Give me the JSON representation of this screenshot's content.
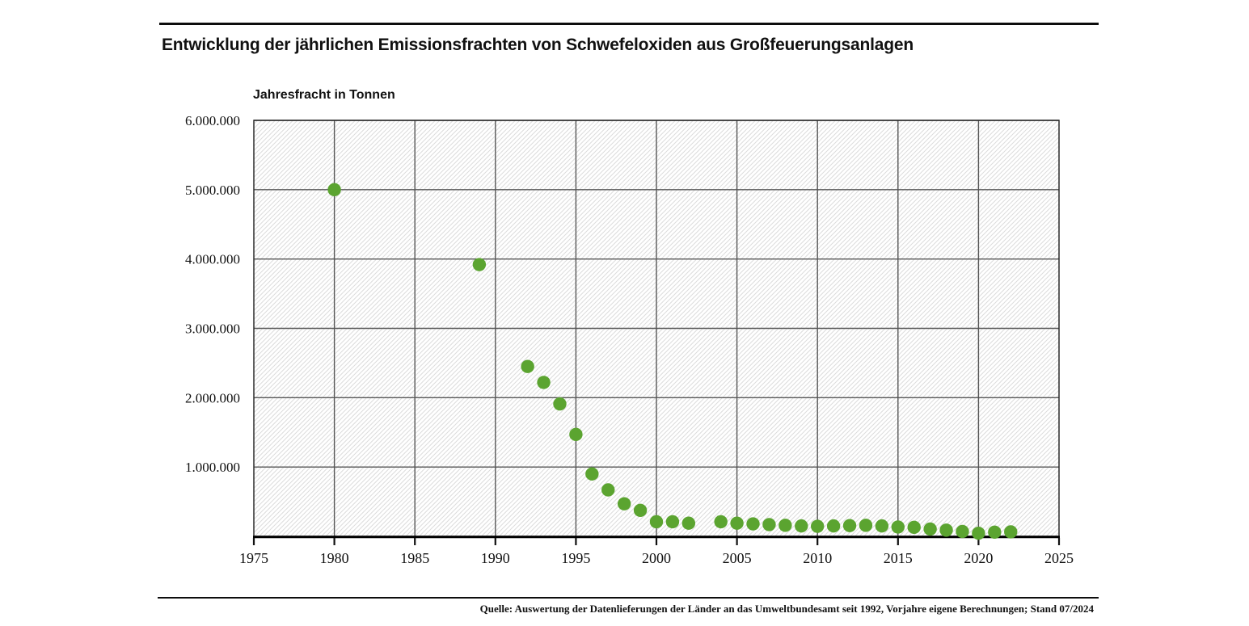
{
  "chart_data": {
    "type": "scatter",
    "title": "Entwicklung der jährlichen Emissionsfrachten von Schwefeloxiden aus Großfeuerungsanlagen",
    "ylabel": "Jahresfracht in Tonnen",
    "xlabel": "",
    "xlim": [
      1975,
      2025
    ],
    "ylim": [
      0,
      6000000
    ],
    "grid": true,
    "background_pattern": "diagonal-hatch",
    "marker_color": "#5ba430",
    "xticks": {
      "values": [
        1975,
        1980,
        1985,
        1990,
        1995,
        2000,
        2005,
        2010,
        2015,
        2020,
        2025
      ],
      "labels": [
        "1975",
        "1980",
        "1985",
        "1990",
        "1995",
        "2000",
        "2005",
        "2010",
        "2015",
        "2020",
        "2025"
      ]
    },
    "yticks": {
      "values": [
        1000000,
        2000000,
        3000000,
        4000000,
        5000000,
        6000000
      ],
      "labels": [
        "1.000.000",
        "2.000.000",
        "3.000.000",
        "4.000.000",
        "5.000.000",
        "6.000.000"
      ]
    },
    "points": [
      [
        1980,
        5000000
      ],
      [
        1989,
        3920000
      ],
      [
        1992,
        2450000
      ],
      [
        1993,
        2220000
      ],
      [
        1994,
        1910000
      ],
      [
        1995,
        1470000
      ],
      [
        1996,
        900000
      ],
      [
        1997,
        670000
      ],
      [
        1998,
        470000
      ],
      [
        1999,
        375000
      ],
      [
        2000,
        210000
      ],
      [
        2001,
        210000
      ],
      [
        2002,
        190000
      ],
      [
        2004,
        210000
      ],
      [
        2005,
        190000
      ],
      [
        2006,
        180000
      ],
      [
        2007,
        170000
      ],
      [
        2008,
        160000
      ],
      [
        2009,
        150000
      ],
      [
        2010,
        145000
      ],
      [
        2011,
        150000
      ],
      [
        2012,
        155000
      ],
      [
        2013,
        160000
      ],
      [
        2014,
        150000
      ],
      [
        2015,
        135000
      ],
      [
        2016,
        130000
      ],
      [
        2017,
        105000
      ],
      [
        2018,
        90000
      ],
      [
        2019,
        70000
      ],
      [
        2020,
        45000
      ],
      [
        2021,
        60000
      ],
      [
        2022,
        65000
      ]
    ]
  },
  "footer": {
    "source": "Quelle: Auswertung der Datenlieferungen der Länder an das Umweltbundesamt seit 1992, Vorjahre eigene Berechnungen; Stand 07/2024"
  }
}
